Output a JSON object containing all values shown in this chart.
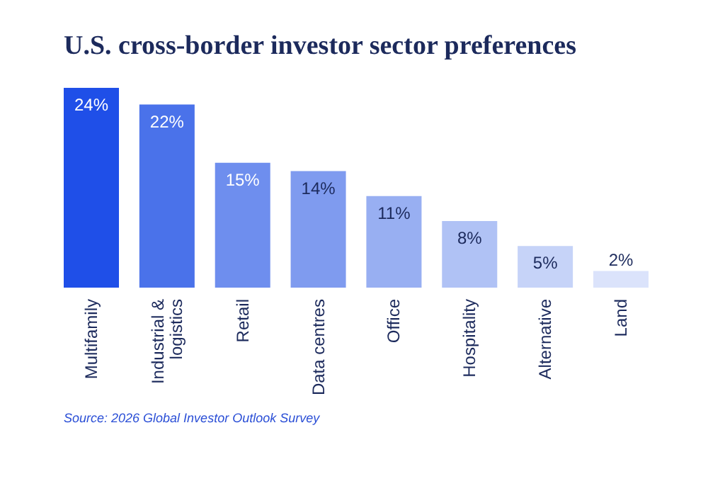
{
  "chart_data": {
    "type": "bar",
    "title": "U.S. cross-border investor sector preferences",
    "categories": [
      "Multifamily",
      "Industrial & logistics",
      "Retail",
      "Data centres",
      "Office",
      "Hospitality",
      "Alternative",
      "Land"
    ],
    "values": [
      24,
      22,
      15,
      14,
      11,
      8,
      5,
      2
    ],
    "value_labels": [
      "24%",
      "22%",
      "15%",
      "14%",
      "11%",
      "8%",
      "5%",
      "2%"
    ],
    "colors": [
      "#1f4fe8",
      "#4a72ea",
      "#6e8eee",
      "#7f9bef",
      "#98aff2",
      "#b0c2f5",
      "#c6d3f8",
      "#dbe3fb"
    ],
    "annotations": [
      "Source: 2026 Global Investor Outlook Survey"
    ]
  }
}
